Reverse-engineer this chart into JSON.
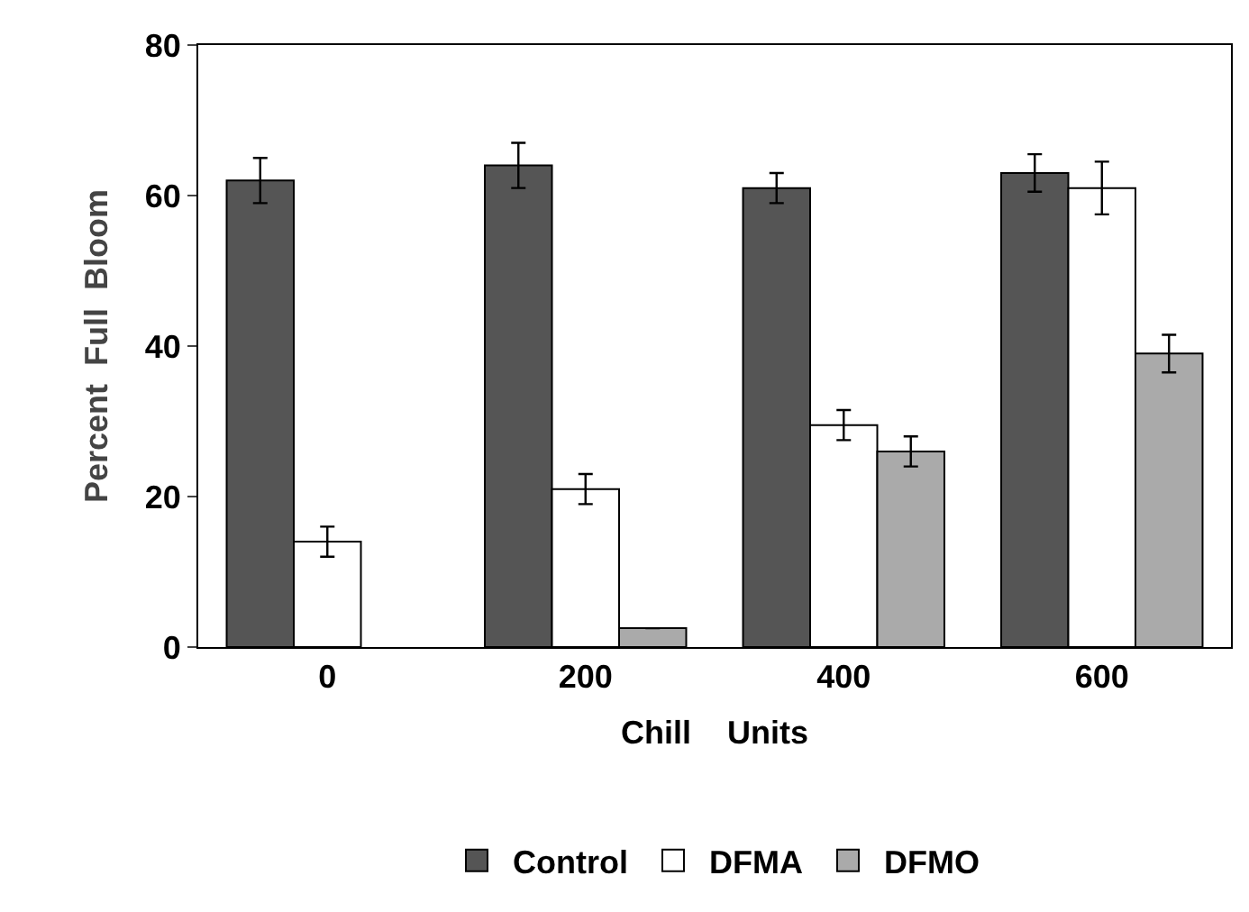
{
  "chart_data": {
    "type": "bar",
    "xlabel": "Chill    Units",
    "ylabel": "Percent  Full  Bloom",
    "categories": [
      "0",
      "200",
      "400",
      "600"
    ],
    "series": [
      {
        "name": "Control",
        "color": "#555555",
        "values": [
          62,
          64,
          61,
          63
        ],
        "errors": [
          3,
          3,
          2,
          2.5
        ]
      },
      {
        "name": "DFMA",
        "color": "#ffffff",
        "values": [
          14,
          21,
          29.5,
          61
        ],
        "errors": [
          2,
          2,
          2,
          3.5
        ]
      },
      {
        "name": "DFMO",
        "color": "#aaaaaa",
        "values": [
          null,
          2.5,
          26,
          39
        ],
        "errors": [
          null,
          null,
          2,
          2.5
        ]
      }
    ],
    "ylim": [
      0,
      80
    ],
    "yticks": [
      0,
      20,
      40,
      60,
      80
    ],
    "legend": "bottom"
  }
}
